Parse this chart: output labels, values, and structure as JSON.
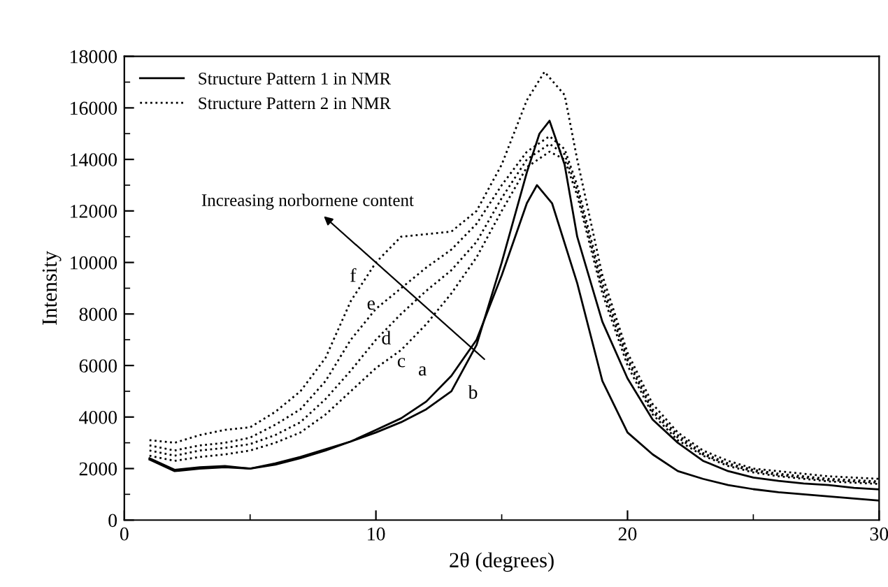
{
  "chart_data": {
    "type": "line",
    "xlabel": "2θ (degrees)",
    "ylabel": "Intensity",
    "xlim": [
      0,
      30
    ],
    "xticks": [
      0,
      10,
      20,
      30
    ],
    "ylim": [
      0,
      18000
    ],
    "yticks": [
      0,
      2000,
      4000,
      6000,
      8000,
      10000,
      12000,
      14000,
      16000,
      18000
    ],
    "grid": false,
    "legend": "top left",
    "marker": "none",
    "series": [
      {
        "name": "Structure Pattern 1 in NMR",
        "color": "#000000",
        "line_style": "solid",
        "x": [
          1,
          2,
          3,
          4,
          5,
          6,
          7,
          8,
          9,
          10,
          11,
          12,
          13,
          14,
          15,
          16,
          16.4,
          17,
          18,
          19,
          20,
          21,
          22,
          23,
          24,
          25,
          26,
          27,
          28,
          29,
          30
        ],
        "values": [
          2400,
          1950,
          2050,
          2100,
          2000,
          2150,
          2400,
          2700,
          3050,
          3500,
          3950,
          4600,
          5600,
          7000,
          9500,
          12300,
          13000,
          12300,
          9200,
          5400,
          3400,
          2550,
          1900,
          1600,
          1360,
          1200,
          1080,
          1000,
          920,
          840,
          760
        ]
      },
      {
        "color": "#000000",
        "line_style": "solid",
        "x": [
          1,
          2,
          3,
          4,
          5,
          6,
          7,
          8,
          9,
          10,
          11,
          12,
          13,
          14,
          15,
          16,
          16.5,
          16.9,
          17.5,
          18,
          19,
          20,
          21,
          22,
          23,
          24,
          25,
          26,
          27,
          28,
          29,
          30
        ],
        "values": [
          2350,
          1900,
          2000,
          2050,
          2000,
          2200,
          2450,
          2750,
          3050,
          3400,
          3800,
          4300,
          5000,
          6800,
          10000,
          13500,
          15000,
          15500,
          13800,
          11000,
          7700,
          5500,
          3900,
          3000,
          2300,
          1900,
          1650,
          1520,
          1420,
          1360,
          1250,
          1190
        ]
      },
      {
        "name": "Structure Pattern 2 in NMR",
        "color": "#000000",
        "line_style": "dotted",
        "x": [
          1,
          2,
          3,
          4,
          5,
          6,
          7,
          8,
          9,
          10,
          11,
          12,
          13,
          14,
          15,
          16,
          16.9,
          17.5,
          18,
          19,
          20,
          21,
          22,
          23,
          24,
          25,
          26,
          27,
          28,
          29,
          30
        ],
        "values": [
          2500,
          2300,
          2450,
          2550,
          2700,
          3000,
          3400,
          4100,
          5000,
          5900,
          6600,
          7600,
          8800,
          10200,
          12000,
          13700,
          14300,
          14000,
          12600,
          8800,
          6000,
          4100,
          3100,
          2500,
          2100,
          1850,
          1700,
          1600,
          1500,
          1450,
          1400
        ]
      },
      {
        "color": "#000000",
        "line_style": "dotted",
        "x": [
          1,
          2,
          3,
          4,
          5,
          6,
          7,
          8,
          9,
          10,
          11,
          12,
          13,
          14,
          15,
          16,
          16.9,
          17.5,
          18,
          19,
          20,
          21,
          22,
          23,
          24,
          25,
          26,
          27,
          28,
          29,
          30
        ],
        "values": [
          2700,
          2500,
          2700,
          2800,
          2950,
          3300,
          3800,
          4700,
          5800,
          7000,
          8000,
          8900,
          9700,
          10800,
          12500,
          14000,
          14600,
          14200,
          12800,
          9000,
          6200,
          4200,
          3200,
          2550,
          2150,
          1900,
          1750,
          1650,
          1550,
          1500,
          1450
        ]
      },
      {
        "color": "#000000",
        "line_style": "dotted",
        "x": [
          1,
          2,
          3,
          4,
          5,
          6,
          7,
          8,
          9,
          10,
          11,
          12,
          13,
          14,
          15,
          16,
          16.9,
          17.5,
          18,
          19,
          20,
          21,
          22,
          23,
          24,
          25,
          26,
          27,
          28,
          29,
          30
        ],
        "values": [
          2900,
          2700,
          2900,
          3000,
          3200,
          3700,
          4300,
          5400,
          7000,
          8200,
          9000,
          9800,
          10500,
          11500,
          13000,
          14300,
          14900,
          14400,
          13000,
          9200,
          6300,
          4300,
          3300,
          2600,
          2200,
          1950,
          1800,
          1700,
          1600,
          1550,
          1500
        ]
      },
      {
        "color": "#000000",
        "line_style": "dotted",
        "x": [
          1,
          2,
          3,
          4,
          5,
          6,
          7,
          8,
          9,
          10,
          11,
          12,
          13,
          14,
          15,
          16,
          16.7,
          17.5,
          18,
          19,
          20,
          21,
          22,
          23,
          24,
          25,
          26,
          27,
          28,
          29,
          30
        ],
        "values": [
          3100,
          3000,
          3300,
          3500,
          3600,
          4200,
          5000,
          6300,
          8500,
          10000,
          11000,
          11100,
          11200,
          12000,
          13800,
          16300,
          17400,
          16500,
          14000,
          9500,
          6500,
          4500,
          3400,
          2700,
          2300,
          2000,
          1900,
          1800,
          1700,
          1650,
          1600
        ]
      }
    ],
    "annotations": [
      "Increasing norbornene content",
      "a",
      "b",
      "c",
      "d",
      "e",
      "f"
    ]
  }
}
